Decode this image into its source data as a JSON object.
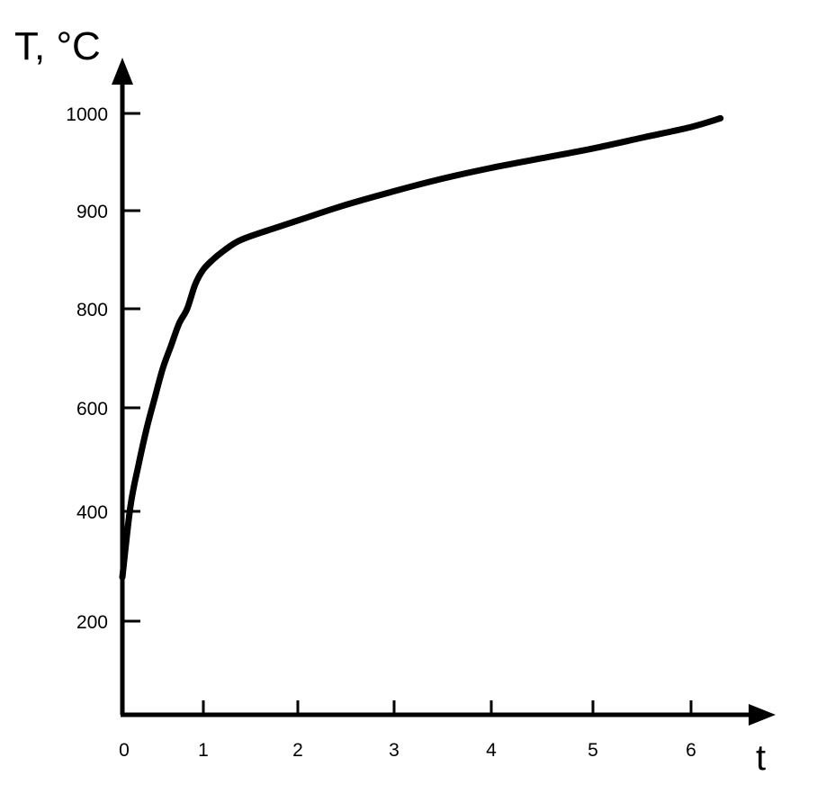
{
  "chart_data": {
    "type": "line",
    "ylabel": "T, °C",
    "xlabel": "t",
    "x_ticks": [
      0,
      1,
      2,
      3,
      4,
      5,
      6
    ],
    "y_ticks": [
      200,
      400,
      600,
      800,
      900,
      1000
    ],
    "series": [
      {
        "x": [
          0,
          0.1,
          0.2,
          0.3,
          0.4,
          0.5,
          0.6,
          0.7,
          0.8,
          0.9,
          1.0,
          1.1,
          1.2,
          1.35,
          1.5,
          1.75,
          2.0,
          2.5,
          3.0,
          3.5,
          4.0,
          4.5,
          5.0,
          5.5,
          6.0,
          6.3
        ],
        "y": [
          280,
          410,
          490,
          560,
          620,
          680,
          725,
          770,
          800,
          825,
          840,
          850,
          858,
          868,
          874,
          882,
          890,
          906,
          920,
          933,
          944,
          954,
          964,
          975,
          986,
          995
        ]
      }
    ],
    "colors": {
      "line": "#000000",
      "axis": "#000000"
    }
  }
}
